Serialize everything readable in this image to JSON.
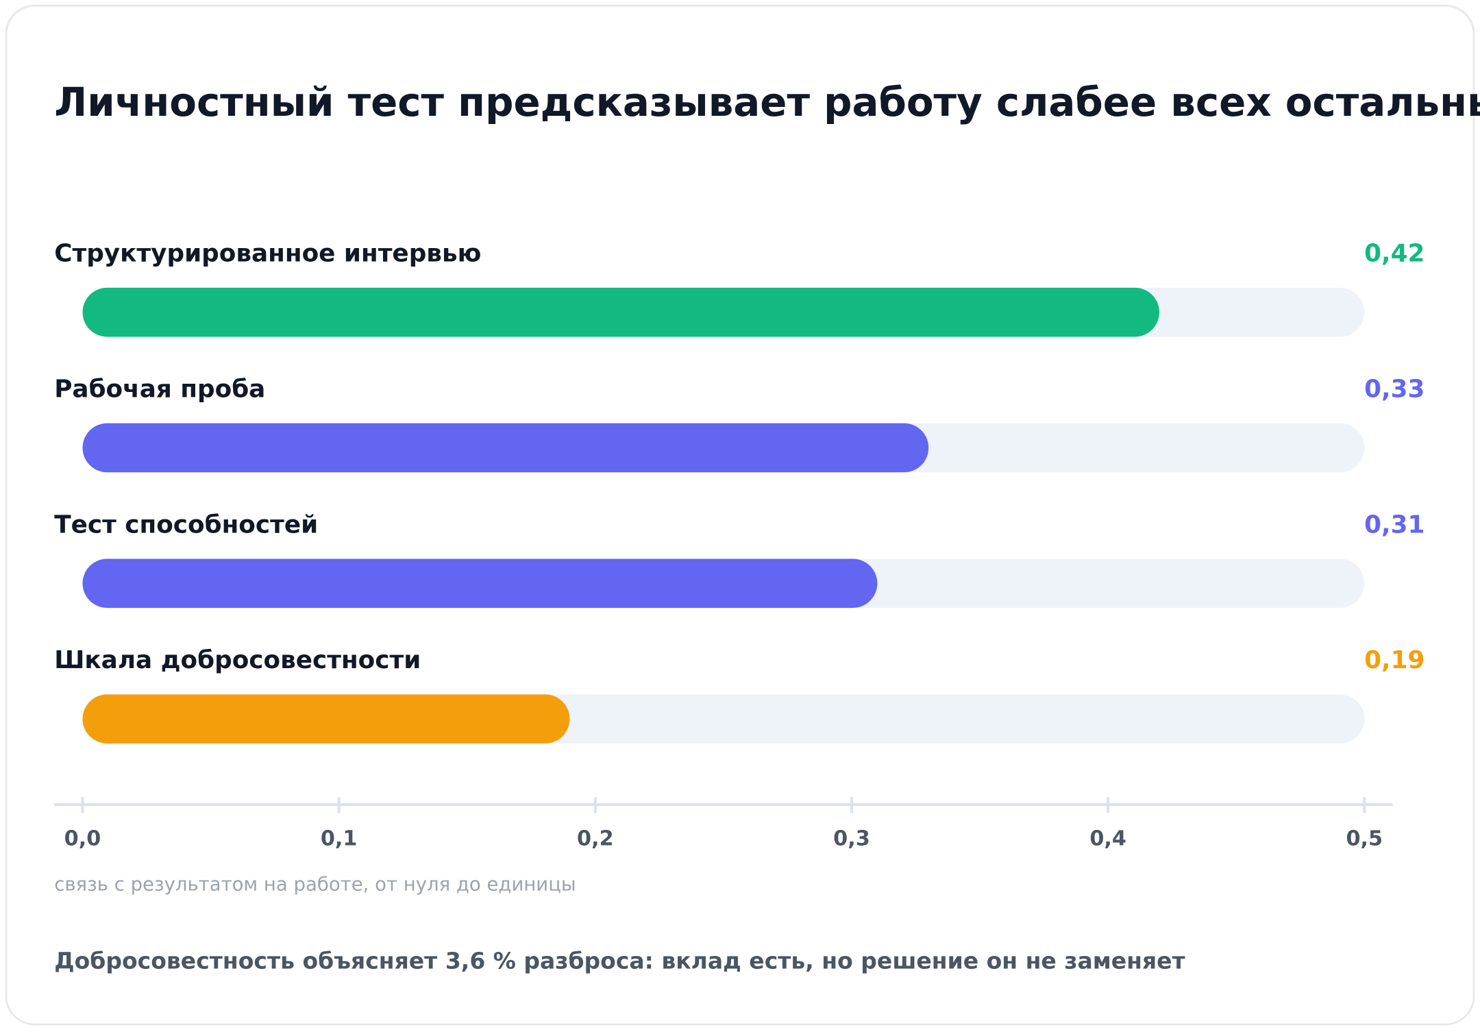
{
  "chart_data": {
    "type": "hbar",
    "title": "Личностный тест предсказывает работу слабее всех остальных",
    "categories": [
      "Структурированное интервью",
      "Рабочая проба",
      "Тест способностей",
      "Шкала добросовестности"
    ],
    "values": [
      0.42,
      0.33,
      0.31,
      0.19
    ],
    "value_labels": [
      "0,42",
      "0,33",
      "0,31",
      "0,19"
    ],
    "colors": [
      "#12b981",
      "#6366f1",
      "#6366f1",
      "#f59e0b"
    ],
    "xlim": [
      0,
      0.5
    ],
    "xticks": [
      {
        "value": 0,
        "label": "0,0"
      },
      {
        "value": 0.1,
        "label": "0,1"
      },
      {
        "value": 0.2,
        "label": "0,2"
      },
      {
        "value": 0.3,
        "label": "0,3"
      },
      {
        "value": 0.4,
        "label": "0,4"
      },
      {
        "value": 0.5,
        "label": "0,5"
      }
    ],
    "x_label": "связь с результатом на работе, от нуля до единицы",
    "note": "Добросовестность объясняет 3,6 % разброса: вклад есть, но решение он не заменяет"
  }
}
